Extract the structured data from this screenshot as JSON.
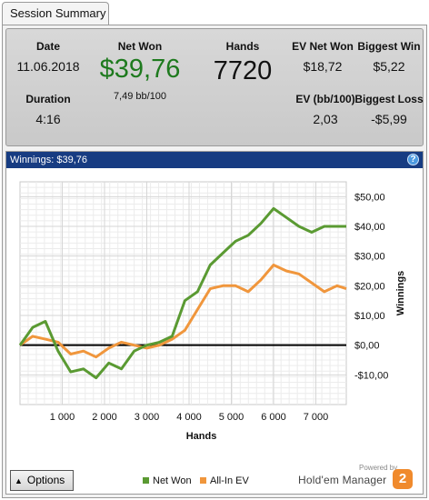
{
  "tab": {
    "label": "Session Summary"
  },
  "summary": {
    "date_label": "Date",
    "date_value": "11.06.2018",
    "duration_label": "Duration",
    "duration_value": "4:16",
    "net_won_label": "Net Won",
    "net_won_value": "$39,76",
    "net_won_bb": "7,49 bb/100",
    "hands_label": "Hands",
    "hands_value": "7720",
    "ev_net_won_label": "EV Net Won",
    "ev_net_won_value": "$18,72",
    "ev_bb_label": "EV (bb/100)",
    "ev_bb_value": "2,03",
    "biggest_win_label": "Biggest Win",
    "biggest_win_value": "$5,22",
    "biggest_loss_label": "Biggest Loss",
    "biggest_loss_value": "-$5,99",
    "net_won_color": "#1e7a1e"
  },
  "chart_header": {
    "title": "Winnings: $39,76",
    "help_glyph": "?"
  },
  "footer": {
    "options_label": "Options",
    "legend_net_won": "Net Won",
    "legend_allin_ev": "All-In EV",
    "powered_by": "Powered by",
    "brand": "Hold'em Manager",
    "brand_badge": "2"
  },
  "chart_data": {
    "type": "line",
    "xlabel": "Hands",
    "ylabel": "Winnings",
    "xlim": [
      0,
      7720
    ],
    "ylim": [
      -20,
      55
    ],
    "x_ticks": [
      1000,
      2000,
      3000,
      4000,
      5000,
      6000,
      7000
    ],
    "x_tick_labels": [
      "1 000",
      "2 000",
      "3 000",
      "4 000",
      "5 000",
      "6 000",
      "7 000"
    ],
    "y_ticks": [
      -10,
      0,
      10,
      20,
      30,
      40,
      50
    ],
    "y_tick_labels": [
      "-$10,00",
      "$0,00",
      "$10,00",
      "$20,00",
      "$30,00",
      "$40,00",
      "$50,00"
    ],
    "grid": true,
    "legend_position": "bottom",
    "series": [
      {
        "name": "Net Won",
        "color": "#5a9a32",
        "x": [
          0,
          300,
          600,
          900,
          1200,
          1500,
          1800,
          2100,
          2400,
          2700,
          3000,
          3300,
          3600,
          3900,
          4200,
          4500,
          4800,
          5100,
          5400,
          5700,
          6000,
          6300,
          6600,
          6900,
          7200,
          7500,
          7720
        ],
        "y": [
          0,
          6,
          8,
          -2,
          -9,
          -8,
          -11,
          -6,
          -8,
          -2,
          0,
          1,
          3,
          15,
          18,
          27,
          31,
          35,
          37,
          41,
          46,
          43,
          40,
          38,
          40,
          40,
          40
        ]
      },
      {
        "name": "All-In EV",
        "color": "#f0963c",
        "x": [
          0,
          300,
          600,
          900,
          1200,
          1500,
          1800,
          2100,
          2400,
          2700,
          3000,
          3300,
          3600,
          3900,
          4200,
          4500,
          4800,
          5100,
          5400,
          5700,
          6000,
          6300,
          6600,
          6900,
          7200,
          7500,
          7720
        ],
        "y": [
          0,
          3,
          2,
          1,
          -3,
          -2,
          -4,
          -1,
          1,
          0,
          -1,
          0,
          2,
          5,
          12,
          19,
          20,
          20,
          18,
          22,
          27,
          25,
          24,
          21,
          18,
          20,
          19
        ]
      }
    ]
  }
}
